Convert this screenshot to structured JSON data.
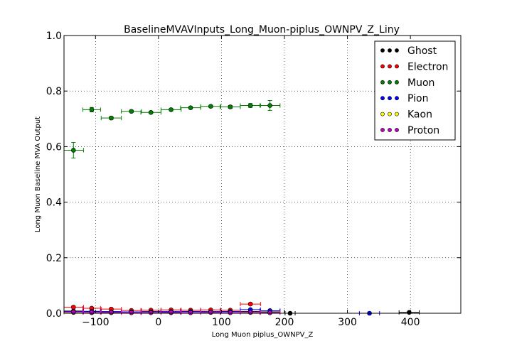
{
  "chart_data": {
    "type": "scatter",
    "title": "BaselineMVAVInputs_Long_Muon-piplus_OWNPV_Z_Liny",
    "xlabel": "Long Muon piplus_OWNPV_Z",
    "ylabel": "Long Muon Baseline MVA Output",
    "xlim": [
      -150,
      480
    ],
    "ylim": [
      0.0,
      1.0
    ],
    "xticks": [
      -100,
      0,
      100,
      200,
      300,
      400
    ],
    "yticks": [
      0.0,
      0.2,
      0.4,
      0.6,
      0.8,
      1.0
    ],
    "xtick_labels": [
      "−100",
      "0",
      "100",
      "200",
      "300",
      "400"
    ],
    "ytick_labels": [
      "0.0",
      "0.2",
      "0.4",
      "0.6",
      "0.8",
      "1.0"
    ],
    "grid": true,
    "legend_position": "top-right",
    "series": [
      {
        "name": "Ghost",
        "color": "#000000",
        "points": [
          {
            "x": -135,
            "xerr": 16,
            "y": 0.008,
            "yerr": 0.002
          },
          {
            "x": -106,
            "xerr": 14,
            "y": 0.006,
            "yerr": 0.001
          },
          {
            "x": -75,
            "xerr": 16,
            "y": 0.006,
            "yerr": 0.001
          },
          {
            "x": -43,
            "xerr": 16,
            "y": 0.005,
            "yerr": 0.001
          },
          {
            "x": -12,
            "xerr": 16,
            "y": 0.006,
            "yerr": 0.001
          },
          {
            "x": 20,
            "xerr": 16,
            "y": 0.005,
            "yerr": 0.001
          },
          {
            "x": 51,
            "xerr": 16,
            "y": 0.006,
            "yerr": 0.001
          },
          {
            "x": 83,
            "xerr": 16,
            "y": 0.006,
            "yerr": 0.001
          },
          {
            "x": 114,
            "xerr": 16,
            "y": 0.006,
            "yerr": 0.001
          },
          {
            "x": 146,
            "xerr": 16,
            "y": 0.006,
            "yerr": 0.001
          },
          {
            "x": 177,
            "xerr": 16,
            "y": 0.005,
            "yerr": 0.001
          },
          {
            "x": 209,
            "xerr": 8,
            "y": 0.0,
            "yerr": 0.0
          },
          {
            "x": 398,
            "xerr": 16,
            "y": 0.003,
            "yerr": 0.001
          }
        ]
      },
      {
        "name": "Electron",
        "color": "#ff0000",
        "points": [
          {
            "x": -135,
            "xerr": 16,
            "y": 0.022,
            "yerr": 0.004
          },
          {
            "x": -106,
            "xerr": 14,
            "y": 0.018,
            "yerr": 0.003
          },
          {
            "x": -75,
            "xerr": 16,
            "y": 0.015,
            "yerr": 0.003
          },
          {
            "x": -43,
            "xerr": 16,
            "y": 0.01,
            "yerr": 0.002
          },
          {
            "x": -12,
            "xerr": 16,
            "y": 0.011,
            "yerr": 0.002
          },
          {
            "x": 20,
            "xerr": 16,
            "y": 0.012,
            "yerr": 0.002
          },
          {
            "x": 51,
            "xerr": 16,
            "y": 0.011,
            "yerr": 0.002
          },
          {
            "x": 83,
            "xerr": 16,
            "y": 0.012,
            "yerr": 0.002
          },
          {
            "x": 114,
            "xerr": 16,
            "y": 0.011,
            "yerr": 0.002
          },
          {
            "x": 146,
            "xerr": 16,
            "y": 0.033,
            "yerr": 0.004
          },
          {
            "x": 177,
            "xerr": 16,
            "y": 0.009,
            "yerr": 0.002
          }
        ]
      },
      {
        "name": "Muon",
        "color": "#008000",
        "points": [
          {
            "x": -135,
            "xerr": 16,
            "y": 0.587,
            "yerr": 0.028
          },
          {
            "x": -106,
            "xerr": 14,
            "y": 0.733,
            "yerr": 0.008
          },
          {
            "x": -75,
            "xerr": 16,
            "y": 0.703,
            "yerr": 0.005
          },
          {
            "x": -43,
            "xerr": 16,
            "y": 0.727,
            "yerr": 0.004
          },
          {
            "x": -12,
            "xerr": 16,
            "y": 0.723,
            "yerr": 0.004
          },
          {
            "x": 20,
            "xerr": 16,
            "y": 0.733,
            "yerr": 0.004
          },
          {
            "x": 51,
            "xerr": 16,
            "y": 0.74,
            "yerr": 0.004
          },
          {
            "x": 83,
            "xerr": 16,
            "y": 0.745,
            "yerr": 0.004
          },
          {
            "x": 114,
            "xerr": 16,
            "y": 0.743,
            "yerr": 0.005
          },
          {
            "x": 146,
            "xerr": 16,
            "y": 0.748,
            "yerr": 0.007
          },
          {
            "x": 177,
            "xerr": 16,
            "y": 0.748,
            "yerr": 0.018
          }
        ]
      },
      {
        "name": "Pion",
        "color": "#0000ff",
        "points": [
          {
            "x": -135,
            "xerr": 16,
            "y": 0.006,
            "yerr": 0.001
          },
          {
            "x": -106,
            "xerr": 14,
            "y": 0.007,
            "yerr": 0.001
          },
          {
            "x": -75,
            "xerr": 16,
            "y": 0.005,
            "yerr": 0.001
          },
          {
            "x": -43,
            "xerr": 16,
            "y": 0.005,
            "yerr": 0.001
          },
          {
            "x": -12,
            "xerr": 16,
            "y": 0.005,
            "yerr": 0.001
          },
          {
            "x": 20,
            "xerr": 16,
            "y": 0.006,
            "yerr": 0.001
          },
          {
            "x": 51,
            "xerr": 16,
            "y": 0.006,
            "yerr": 0.001
          },
          {
            "x": 83,
            "xerr": 16,
            "y": 0.005,
            "yerr": 0.001
          },
          {
            "x": 114,
            "xerr": 16,
            "y": 0.006,
            "yerr": 0.001
          },
          {
            "x": 146,
            "xerr": 16,
            "y": 0.013,
            "yerr": 0.002
          },
          {
            "x": 177,
            "xerr": 16,
            "y": 0.009,
            "yerr": 0.002
          },
          {
            "x": 335,
            "xerr": 16,
            "y": 0.0,
            "yerr": 0.0
          }
        ]
      },
      {
        "name": "Kaon",
        "color": "#ffff00",
        "points": [
          {
            "x": -135,
            "xerr": 16,
            "y": 0.003,
            "yerr": 0.001
          },
          {
            "x": -106,
            "xerr": 14,
            "y": 0.002,
            "yerr": 0.001
          },
          {
            "x": -75,
            "xerr": 16,
            "y": 0.002,
            "yerr": 0.001
          },
          {
            "x": -43,
            "xerr": 16,
            "y": 0.002,
            "yerr": 0.001
          },
          {
            "x": -12,
            "xerr": 16,
            "y": 0.003,
            "yerr": 0.001
          },
          {
            "x": 20,
            "xerr": 16,
            "y": 0.002,
            "yerr": 0.001
          },
          {
            "x": 51,
            "xerr": 16,
            "y": 0.002,
            "yerr": 0.001
          },
          {
            "x": 83,
            "xerr": 16,
            "y": 0.003,
            "yerr": 0.001
          },
          {
            "x": 114,
            "xerr": 16,
            "y": 0.002,
            "yerr": 0.001
          },
          {
            "x": 146,
            "xerr": 16,
            "y": 0.003,
            "yerr": 0.001
          },
          {
            "x": 177,
            "xerr": 16,
            "y": 0.002,
            "yerr": 0.001
          }
        ]
      },
      {
        "name": "Proton",
        "color": "#bf00bf",
        "points": [
          {
            "x": -135,
            "xerr": 16,
            "y": 0.004,
            "yerr": 0.001
          },
          {
            "x": -106,
            "xerr": 14,
            "y": 0.003,
            "yerr": 0.001
          },
          {
            "x": -75,
            "xerr": 16,
            "y": 0.003,
            "yerr": 0.001
          },
          {
            "x": -43,
            "xerr": 16,
            "y": 0.002,
            "yerr": 0.001
          },
          {
            "x": -12,
            "xerr": 16,
            "y": 0.002,
            "yerr": 0.001
          },
          {
            "x": 20,
            "xerr": 16,
            "y": 0.003,
            "yerr": 0.001
          },
          {
            "x": 51,
            "xerr": 16,
            "y": 0.002,
            "yerr": 0.001
          },
          {
            "x": 83,
            "xerr": 16,
            "y": 0.003,
            "yerr": 0.001
          },
          {
            "x": 114,
            "xerr": 16,
            "y": 0.002,
            "yerr": 0.001
          },
          {
            "x": 146,
            "xerr": 16,
            "y": 0.003,
            "yerr": 0.001
          },
          {
            "x": 177,
            "xerr": 16,
            "y": 0.002,
            "yerr": 0.001
          }
        ]
      }
    ]
  }
}
